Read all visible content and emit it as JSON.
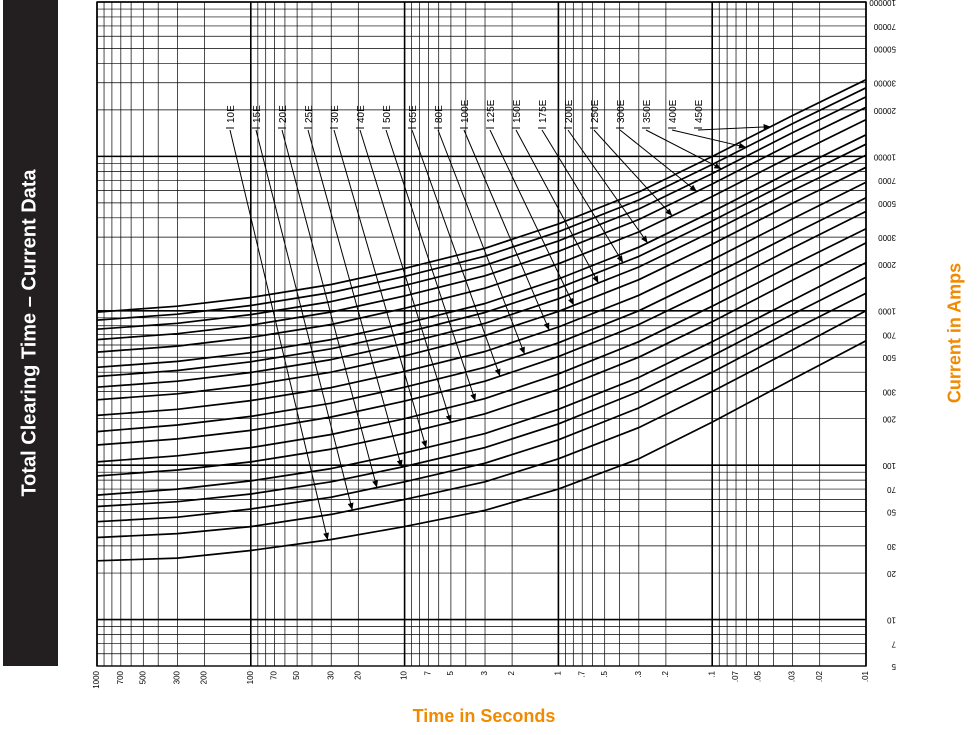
{
  "side_title": "Total Clearing Time – Current Data",
  "chart_data": {
    "type": "line",
    "title": "Total Clearing Time – Current Data",
    "xlabel": "Time in Seconds",
    "ylabel": "Current in Amps",
    "x_scale": "log",
    "y_scale": "log",
    "x_direction": "decreasing",
    "xlim": [
      1000,
      0.01
    ],
    "ylim": [
      5,
      100000
    ],
    "x_ticks": [
      "1000",
      "700",
      "500",
      "300",
      "200",
      "100",
      "70",
      "50",
      "30",
      "20",
      "10",
      "7",
      "5",
      "3",
      "2",
      "1",
      ".7",
      ".5",
      ".3",
      ".2",
      ".1",
      ".07",
      ".05",
      ".03",
      ".02",
      ".01"
    ],
    "y_ticks": [
      "5",
      "7",
      "10",
      "20",
      "30",
      "50",
      "70",
      "100",
      "200",
      "300",
      "500",
      "700",
      "1000",
      "2000",
      "3000",
      "5000",
      "7000",
      "10000",
      "20000",
      "30000",
      "50000",
      "70000",
      "100000"
    ],
    "y_tick_labels_mirrored": true,
    "grid": true,
    "legend": "fuse ratings labeled across top with leader arrows to curves",
    "series": [
      {
        "name": "10E",
        "points": [
          [
            1000,
            24
          ],
          [
            300,
            25
          ],
          [
            100,
            28
          ],
          [
            30,
            33
          ],
          [
            10,
            40
          ],
          [
            3,
            51
          ],
          [
            1,
            70
          ],
          [
            0.3,
            110
          ],
          [
            0.1,
            190
          ],
          [
            0.03,
            360
          ],
          [
            0.01,
            640
          ]
        ]
      },
      {
        "name": "15E",
        "points": [
          [
            1000,
            34
          ],
          [
            300,
            36
          ],
          [
            100,
            40
          ],
          [
            30,
            48
          ],
          [
            10,
            60
          ],
          [
            3,
            78
          ],
          [
            1,
            110
          ],
          [
            0.3,
            175
          ],
          [
            0.1,
            300
          ],
          [
            0.03,
            560
          ],
          [
            0.01,
            1000
          ]
        ]
      },
      {
        "name": "20E",
        "points": [
          [
            1000,
            43
          ],
          [
            300,
            46
          ],
          [
            100,
            52
          ],
          [
            30,
            62
          ],
          [
            10,
            78
          ],
          [
            3,
            103
          ],
          [
            1,
            146
          ],
          [
            0.3,
            235
          ],
          [
            0.1,
            400
          ],
          [
            0.03,
            750
          ],
          [
            0.01,
            1300
          ]
        ]
      },
      {
        "name": "25E",
        "points": [
          [
            1000,
            54
          ],
          [
            300,
            58
          ],
          [
            100,
            65
          ],
          [
            30,
            78
          ],
          [
            10,
            98
          ],
          [
            3,
            130
          ],
          [
            1,
            185
          ],
          [
            0.3,
            300
          ],
          [
            0.1,
            510
          ],
          [
            0.03,
            950
          ],
          [
            0.01,
            1650
          ]
        ]
      },
      {
        "name": "30E",
        "points": [
          [
            1000,
            64
          ],
          [
            300,
            70
          ],
          [
            100,
            79
          ],
          [
            30,
            95
          ],
          [
            10,
            120
          ],
          [
            3,
            160
          ],
          [
            1,
            230
          ],
          [
            0.3,
            370
          ],
          [
            0.1,
            630
          ],
          [
            0.03,
            1170
          ],
          [
            0.01,
            2050
          ]
        ]
      },
      {
        "name": "40E",
        "points": [
          [
            1000,
            85
          ],
          [
            300,
            93
          ],
          [
            100,
            105
          ],
          [
            30,
            127
          ],
          [
            10,
            160
          ],
          [
            3,
            215
          ],
          [
            1,
            310
          ],
          [
            0.3,
            500
          ],
          [
            0.1,
            850
          ],
          [
            0.03,
            1580
          ],
          [
            0.01,
            2750
          ]
        ]
      },
      {
        "name": "50E",
        "points": [
          [
            1000,
            105
          ],
          [
            300,
            115
          ],
          [
            100,
            130
          ],
          [
            30,
            158
          ],
          [
            10,
            200
          ],
          [
            3,
            270
          ],
          [
            1,
            390
          ],
          [
            0.3,
            630
          ],
          [
            0.1,
            1070
          ],
          [
            0.03,
            1980
          ],
          [
            0.01,
            3400
          ]
        ]
      },
      {
        "name": "65E",
        "points": [
          [
            1000,
            135
          ],
          [
            300,
            148
          ],
          [
            100,
            168
          ],
          [
            30,
            205
          ],
          [
            10,
            260
          ],
          [
            3,
            350
          ],
          [
            1,
            505
          ],
          [
            0.3,
            815
          ],
          [
            0.1,
            1380
          ],
          [
            0.03,
            2550
          ],
          [
            0.01,
            4400
          ]
        ]
      },
      {
        "name": "80E",
        "points": [
          [
            1000,
            165
          ],
          [
            300,
            182
          ],
          [
            100,
            207
          ],
          [
            30,
            252
          ],
          [
            10,
            320
          ],
          [
            3,
            430
          ],
          [
            1,
            620
          ],
          [
            0.3,
            1000
          ],
          [
            0.1,
            1700
          ],
          [
            0.03,
            3130
          ],
          [
            0.01,
            5400
          ]
        ]
      },
      {
        "name": "100E",
        "points": [
          [
            1000,
            210
          ],
          [
            300,
            230
          ],
          [
            100,
            262
          ],
          [
            30,
            318
          ],
          [
            10,
            405
          ],
          [
            3,
            545
          ],
          [
            1,
            785
          ],
          [
            0.3,
            1260
          ],
          [
            0.1,
            2140
          ],
          [
            0.03,
            3950
          ],
          [
            0.01,
            6800
          ]
        ]
      },
      {
        "name": "125E",
        "points": [
          [
            1000,
            265
          ],
          [
            300,
            290
          ],
          [
            100,
            330
          ],
          [
            30,
            400
          ],
          [
            10,
            510
          ],
          [
            3,
            690
          ],
          [
            1,
            990
          ],
          [
            0.3,
            1590
          ],
          [
            0.1,
            2700
          ],
          [
            0.03,
            4980
          ],
          [
            0.01,
            8500
          ]
        ]
      },
      {
        "name": "150E",
        "points": [
          [
            1000,
            320
          ],
          [
            300,
            350
          ],
          [
            100,
            398
          ],
          [
            30,
            483
          ],
          [
            10,
            615
          ],
          [
            3,
            830
          ],
          [
            1,
            1195
          ],
          [
            0.3,
            1920
          ],
          [
            0.1,
            3260
          ],
          [
            0.03,
            6000
          ],
          [
            0.01,
            10200
          ]
        ]
      },
      {
        "name": "175E",
        "points": [
          [
            1000,
            375
          ],
          [
            300,
            410
          ],
          [
            100,
            467
          ],
          [
            30,
            567
          ],
          [
            10,
            720
          ],
          [
            3,
            975
          ],
          [
            1,
            1400
          ],
          [
            0.3,
            2250
          ],
          [
            0.1,
            3820
          ],
          [
            0.03,
            7030
          ],
          [
            0.01,
            12000
          ]
        ]
      },
      {
        "name": "200E",
        "points": [
          [
            1000,
            430
          ],
          [
            300,
            470
          ],
          [
            100,
            535
          ],
          [
            30,
            650
          ],
          [
            10,
            826
          ],
          [
            3,
            1115
          ],
          [
            1,
            1605
          ],
          [
            0.3,
            2580
          ],
          [
            0.1,
            4380
          ],
          [
            0.03,
            8070
          ],
          [
            0.01,
            13800
          ]
        ]
      },
      {
        "name": "250E",
        "points": [
          [
            1000,
            540
          ],
          [
            300,
            590
          ],
          [
            100,
            672
          ],
          [
            30,
            815
          ],
          [
            10,
            1037
          ],
          [
            3,
            1400
          ],
          [
            1,
            2015
          ],
          [
            0.3,
            3240
          ],
          [
            0.1,
            5500
          ],
          [
            0.03,
            10100
          ],
          [
            0.01,
            17300
          ]
        ]
      },
      {
        "name": "300E",
        "points": [
          [
            1000,
            650
          ],
          [
            300,
            710
          ],
          [
            100,
            808
          ],
          [
            30,
            981
          ],
          [
            10,
            1248
          ],
          [
            3,
            1685
          ],
          [
            1,
            2425
          ],
          [
            0.3,
            3900
          ],
          [
            0.1,
            6620
          ],
          [
            0.03,
            12200
          ],
          [
            0.01,
            20800
          ]
        ]
      },
      {
        "name": "350E",
        "points": [
          [
            1000,
            760
          ],
          [
            300,
            830
          ],
          [
            100,
            945
          ],
          [
            30,
            1147
          ],
          [
            10,
            1459
          ],
          [
            3,
            1970
          ],
          [
            1,
            2835
          ],
          [
            0.3,
            4560
          ],
          [
            0.1,
            7740
          ],
          [
            0.03,
            14250
          ],
          [
            0.01,
            24300
          ]
        ]
      },
      {
        "name": "400E",
        "points": [
          [
            1000,
            870
          ],
          [
            300,
            950
          ],
          [
            100,
            1082
          ],
          [
            30,
            1313
          ],
          [
            10,
            1670
          ],
          [
            3,
            2255
          ],
          [
            1,
            3245
          ],
          [
            0.3,
            5220
          ],
          [
            0.1,
            8860
          ],
          [
            0.03,
            16300
          ],
          [
            0.01,
            27800
          ]
        ]
      },
      {
        "name": "450E",
        "points": [
          [
            1000,
            980
          ],
          [
            300,
            1070
          ],
          [
            100,
            1218
          ],
          [
            30,
            1479
          ],
          [
            10,
            1881
          ],
          [
            3,
            2540
          ],
          [
            1,
            3655
          ],
          [
            0.3,
            5880
          ],
          [
            0.1,
            9980
          ],
          [
            0.03,
            18400
          ],
          [
            0.01,
            31400
          ]
        ]
      }
    ]
  }
}
